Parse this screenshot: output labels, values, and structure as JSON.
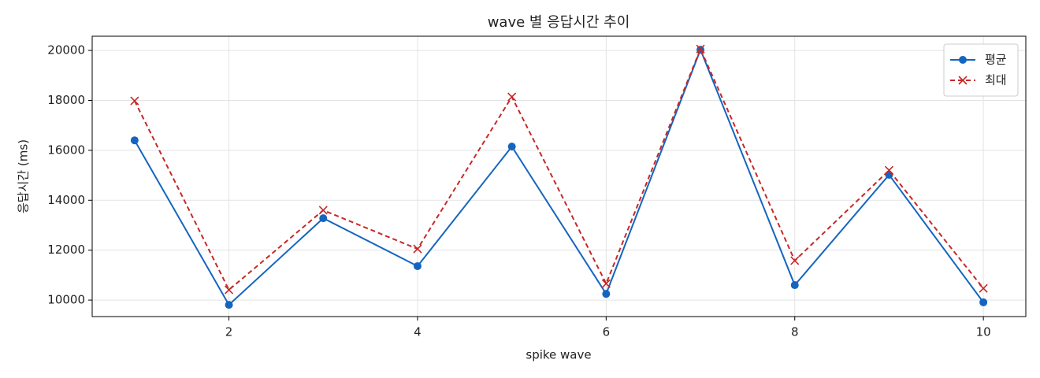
{
  "chart_data": {
    "type": "line",
    "title": "wave 별 응답시간 추이",
    "x_label": "spike wave",
    "y_label": "응답시간 (ms)",
    "x": [
      1,
      2,
      3,
      4,
      5,
      6,
      7,
      8,
      9,
      10
    ],
    "series": [
      {
        "name": "평균",
        "color": "#1565c0",
        "marker": "o",
        "linestyle": "solid",
        "values": [
          16400,
          9810,
          13280,
          11360,
          16150,
          10250,
          20030,
          10600,
          15020,
          9910
        ]
      },
      {
        "name": "최대",
        "color": "#c62828",
        "marker": "x",
        "linestyle": "dashed",
        "values": [
          17980,
          10410,
          13600,
          12050,
          18140,
          10660,
          20060,
          11580,
          15200,
          10470
        ]
      }
    ],
    "xlim": [
      0.55,
      10.45
    ],
    "xticks": [
      2,
      4,
      6,
      8,
      10
    ],
    "ylim": [
      9340,
      20570
    ],
    "yticks": [
      10000,
      12000,
      14000,
      16000,
      18000,
      20000
    ],
    "grid": true,
    "legend": "upper right"
  }
}
